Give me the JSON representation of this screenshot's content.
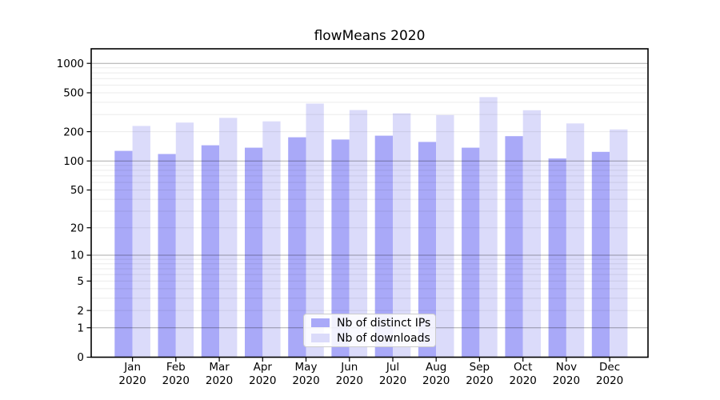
{
  "title": "flowMeans 2020",
  "chart_data": {
    "type": "bar",
    "title": "flowMeans 2020",
    "yscale": "log1p",
    "grid": true,
    "legend_position": "lower center",
    "ylim": [
      0,
      1000
    ],
    "y_ticks": [
      0,
      1,
      2,
      5,
      10,
      20,
      50,
      100,
      200,
      500,
      1000
    ],
    "categories": [
      "Jan 2020",
      "Feb 2020",
      "Mar 2020",
      "Apr 2020",
      "May 2020",
      "Jun 2020",
      "Jul 2020",
      "Aug 2020",
      "Sep 2020",
      "Oct 2020",
      "Nov 2020",
      "Dec 2020"
    ],
    "series": [
      {
        "name": "Nb of distinct IPs",
        "color": "#a9a9f8",
        "values": [
          127,
          118,
          145,
          137,
          175,
          166,
          182,
          157,
          137,
          180,
          106,
          124
        ]
      },
      {
        "name": "Nb of downloads",
        "color": "#dbdbfa",
        "values": [
          229,
          248,
          277,
          255,
          388,
          333,
          308,
          296,
          452,
          332,
          243,
          211
        ]
      }
    ]
  }
}
